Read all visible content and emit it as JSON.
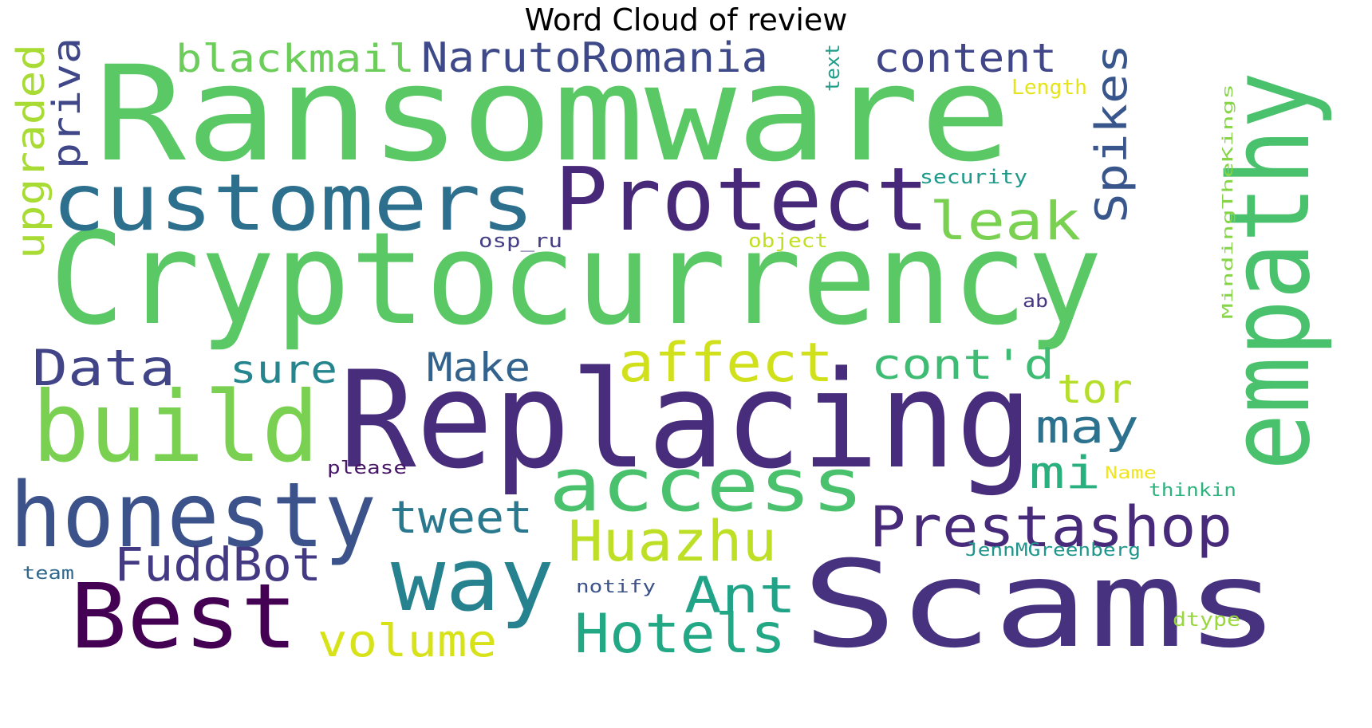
{
  "chart_data": {
    "type": "wordcloud",
    "title": "Word Cloud of review",
    "words": [
      {
        "text": "Ransomware",
        "color": "#5ac864"
      },
      {
        "text": "Cryptocurrency",
        "color": "#5ac864"
      },
      {
        "text": "Replacing",
        "color": "#472d7b"
      },
      {
        "text": "Scams",
        "color": "#46327e"
      },
      {
        "text": "empathy",
        "color": "#4ac16d"
      },
      {
        "text": "Protect",
        "color": "#482878"
      },
      {
        "text": "customers",
        "color": "#2d708e"
      },
      {
        "text": "build",
        "color": "#7ad151"
      },
      {
        "text": "honesty",
        "color": "#3b528b"
      },
      {
        "text": "Best",
        "color": "#440154"
      },
      {
        "text": "way",
        "color": "#26828e"
      },
      {
        "text": "access",
        "color": "#4ac16d"
      },
      {
        "text": "Prestashop",
        "color": "#472a7a"
      },
      {
        "text": "Huazhu",
        "color": "#bddf26"
      },
      {
        "text": "Hotels",
        "color": "#22a884"
      },
      {
        "text": "affect",
        "color": "#d0e11c"
      },
      {
        "text": "leak",
        "color": "#7ad151"
      },
      {
        "text": "Data",
        "color": "#414487"
      },
      {
        "text": "NarutoRomania",
        "color": "#3e4989"
      },
      {
        "text": "blackmail",
        "color": "#6ccd5a"
      },
      {
        "text": "content",
        "color": "#404688"
      },
      {
        "text": "Spikes",
        "color": "#39568c"
      },
      {
        "text": "cont'd",
        "color": "#3fbc73"
      },
      {
        "text": "may",
        "color": "#2c728e"
      },
      {
        "text": "tweet",
        "color": "#2a788e"
      },
      {
        "text": "FuddBot",
        "color": "#443a83"
      },
      {
        "text": "Ant",
        "color": "#20a386"
      },
      {
        "text": "volume",
        "color": "#d8e219"
      },
      {
        "text": "Make",
        "color": "#33638d"
      },
      {
        "text": "sure",
        "color": "#25858e"
      },
      {
        "text": "mi",
        "color": "#2ab07f"
      },
      {
        "text": "tor",
        "color": "#b5de2b"
      },
      {
        "text": "upgraded",
        "color": "#a8db34"
      },
      {
        "text": "priva",
        "color": "#3f4788"
      },
      {
        "text": "text",
        "color": "#1f9e89"
      },
      {
        "text": "Length",
        "color": "#e5e419"
      },
      {
        "text": "security",
        "color": "#1f9a8a"
      },
      {
        "text": "osp_ru",
        "color": "#433e85"
      },
      {
        "text": "object",
        "color": "#c2df23"
      },
      {
        "text": "MindingTheKings",
        "color": "#86d549"
      },
      {
        "text": "ab",
        "color": "#453781"
      },
      {
        "text": "please",
        "color": "#481769"
      },
      {
        "text": "Name",
        "color": "#f1e51d"
      },
      {
        "text": "thinkin",
        "color": "#2db27d"
      },
      {
        "text": "JennMGreenberg",
        "color": "#1f968b"
      },
      {
        "text": "team",
        "color": "#31688e"
      },
      {
        "text": "notify",
        "color": "#3b528b"
      },
      {
        "text": "dtype",
        "color": "#98d83e"
      }
    ]
  }
}
